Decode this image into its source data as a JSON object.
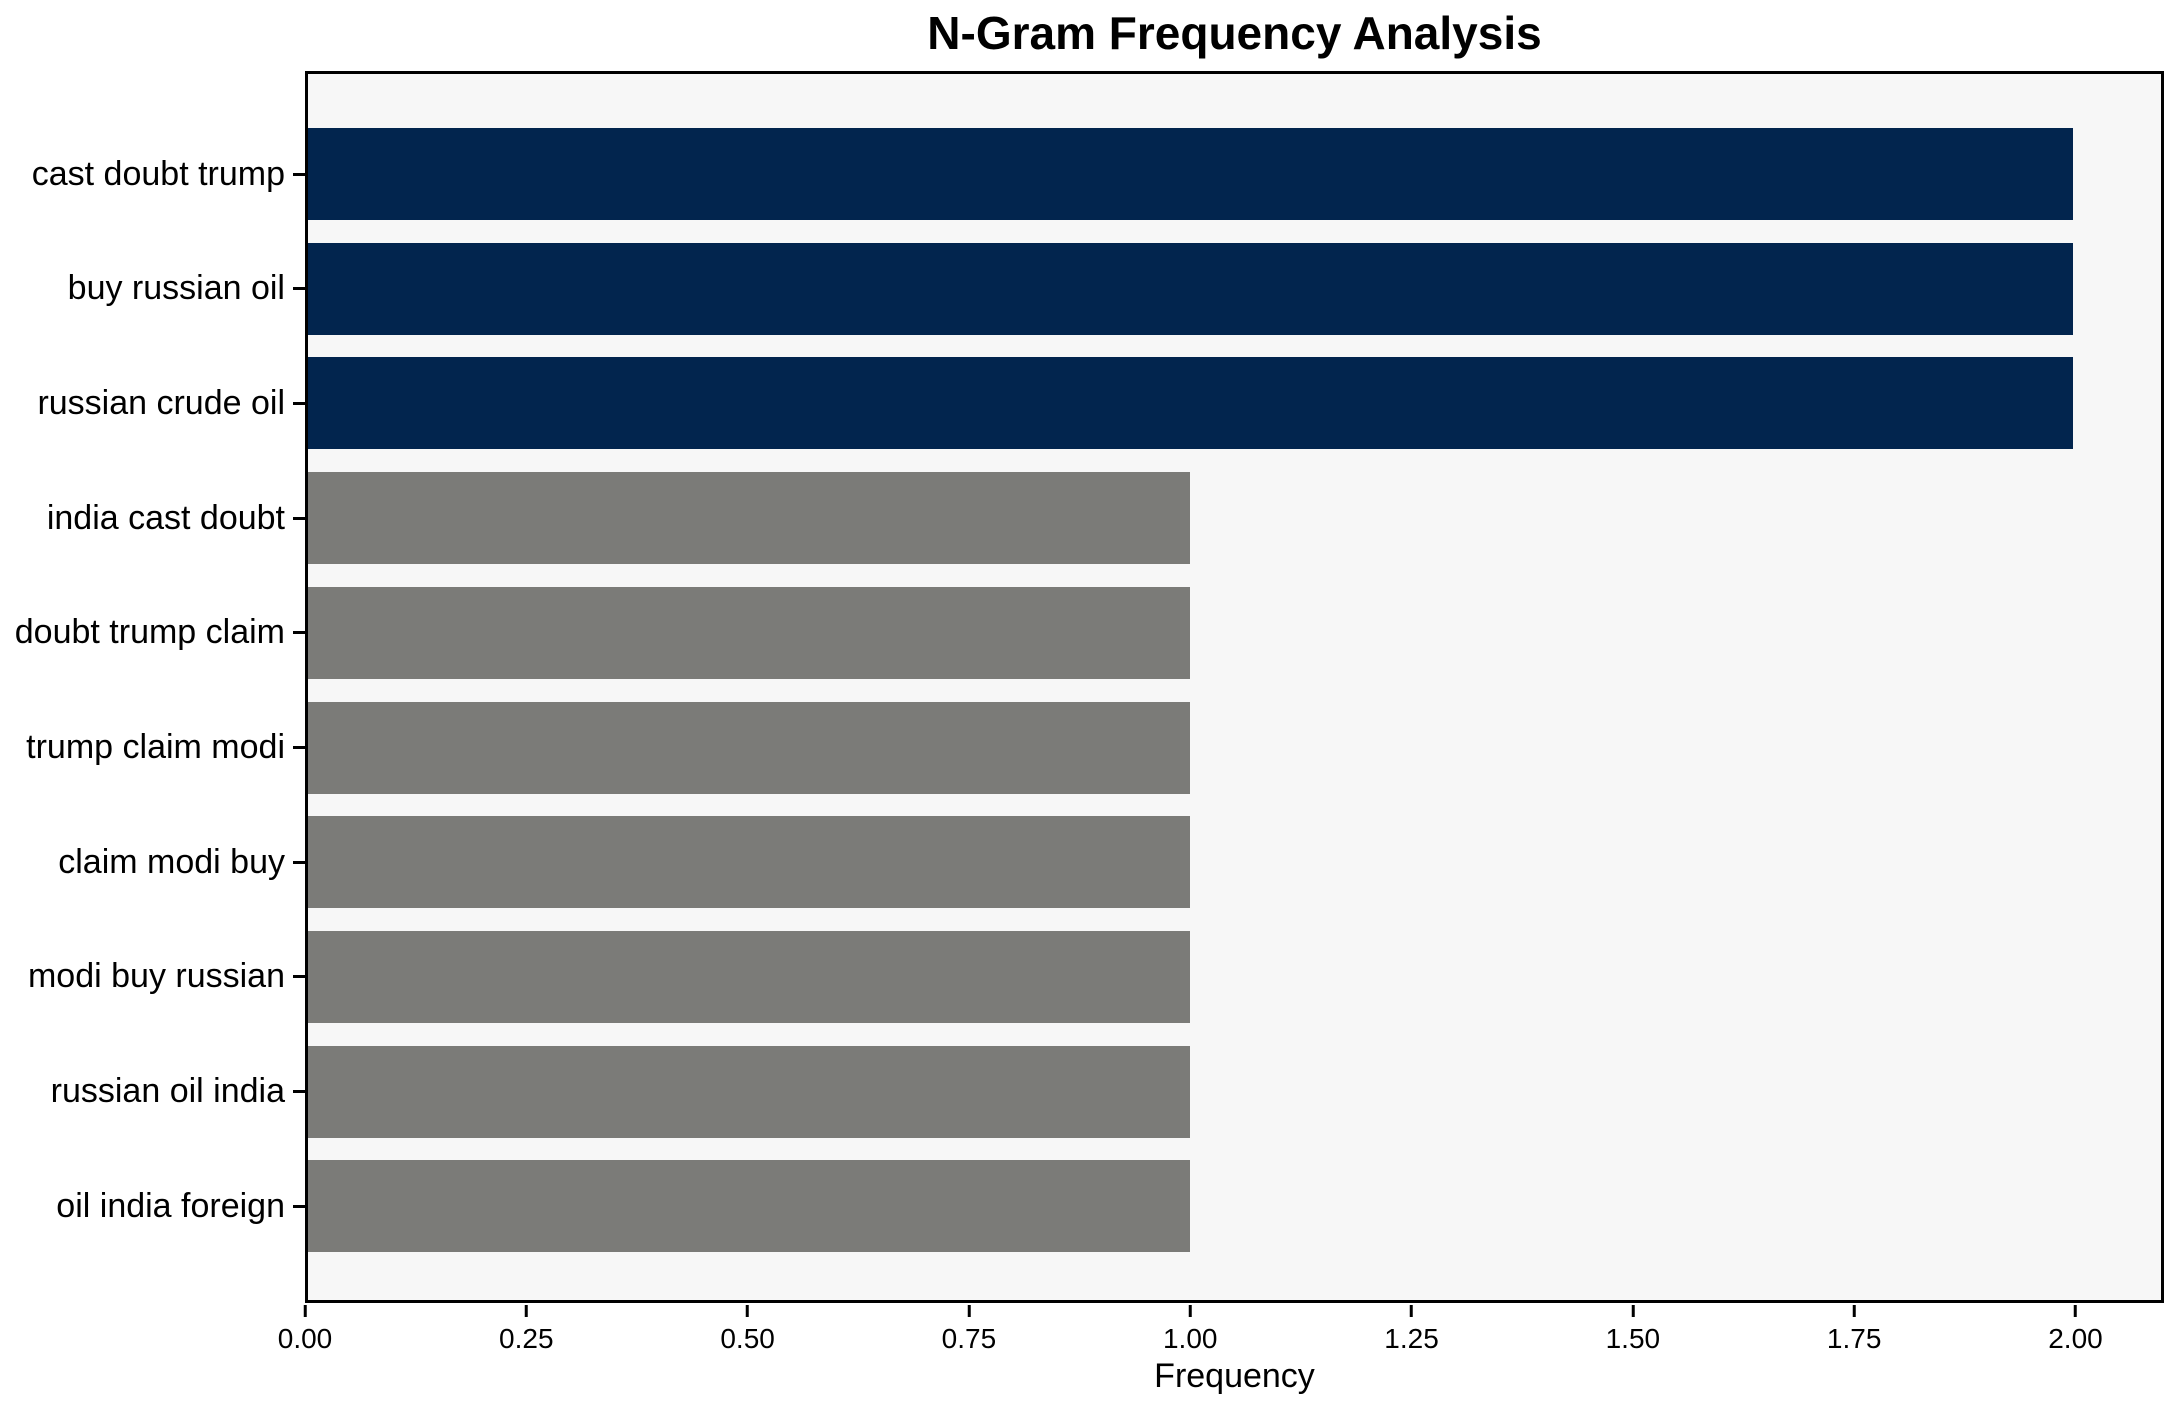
{
  "chart": {
    "title": "N-Gram Frequency Analysis",
    "xlabel": "Frequency"
  },
  "chart_data": {
    "type": "bar",
    "orientation": "horizontal",
    "title": "N-Gram Frequency Analysis",
    "xlabel": "Frequency",
    "ylabel": "",
    "categories": [
      "cast doubt trump",
      "buy russian oil",
      "russian crude oil",
      "india cast doubt",
      "doubt trump claim",
      "trump claim modi",
      "claim modi buy",
      "modi buy russian",
      "russian oil india",
      "oil india foreign"
    ],
    "values": [
      2,
      2,
      2,
      1,
      1,
      1,
      1,
      1,
      1,
      1
    ],
    "bar_colors": [
      "#02254e",
      "#02254e",
      "#02254e",
      "#7b7b78",
      "#7b7b78",
      "#7b7b78",
      "#7b7b78",
      "#7b7b78",
      "#7b7b78",
      "#7b7b78"
    ],
    "xlim": [
      0,
      2.1
    ],
    "xticks": [
      0,
      0.25,
      0.5,
      0.75,
      1,
      1.25,
      1.5,
      1.75,
      2
    ],
    "xtick_labels": [
      "0.00",
      "0.25",
      "0.50",
      "0.75",
      "1.00",
      "1.25",
      "1.50",
      "1.75",
      "2.00"
    ],
    "grid": false,
    "legend_position": "none",
    "plot_background": "#f7f7f7",
    "figure_background": "#ffffff",
    "spine_color": "#000000",
    "text_color": "#000000"
  }
}
